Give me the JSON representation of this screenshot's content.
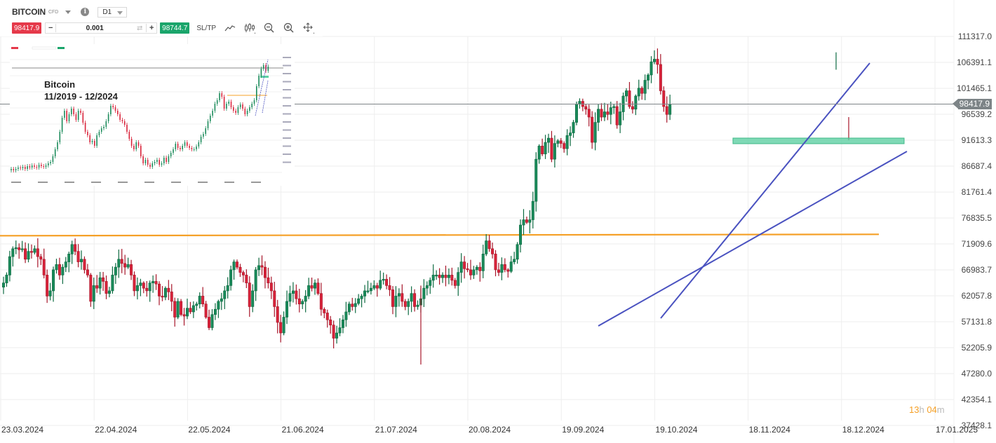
{
  "toolbar": {
    "symbol": "BITCOIN",
    "instrument_type": "CFD",
    "info_icon": "i",
    "timeframe": "D1",
    "sell_price": "98417.9",
    "quantity": "0.001",
    "minus": "−",
    "plus": "+",
    "swap_icon": "⇄",
    "buy_price": "98744.7",
    "sltp_label": "SL/TP",
    "icons": [
      "line-chart-icon",
      "candlestick-icon",
      "zoom-out-icon",
      "zoom-in-icon",
      "move-crosshair-icon"
    ]
  },
  "inset": {
    "title_line1": "Bitcoin",
    "title_line2": "11/2019 - 12/2024"
  },
  "price_axis": {
    "labels": [
      "111317.0",
      "106391.1",
      "101465.1",
      "96539.2",
      "91613.3",
      "86687.4",
      "81761.4",
      "76835.5",
      "71909.6",
      "66983.7",
      "62057.8",
      "57131.8",
      "52205.9",
      "47280.0",
      "42354.1",
      "37428.1"
    ],
    "current_price": "98417.9"
  },
  "time_axis": {
    "labels": [
      "23.03.2024",
      "22.04.2024",
      "22.05.2024",
      "21.06.2024",
      "21.07.2024",
      "20.08.2024",
      "19.09.2024",
      "19.10.2024",
      "18.11.2024",
      "18.12.2024",
      "17.01.2025"
    ]
  },
  "countdown": {
    "hours": "13",
    "h": "h ",
    "minutes": "04",
    "m": "m"
  },
  "colors": {
    "bull": "#1a8a5a",
    "bear": "#d8233a",
    "bull_border": "#0e6b42",
    "bear_border": "#a8162a",
    "trendline": "#4a52c0",
    "resistance": "#f5a027",
    "zone": "#5fd0a4",
    "price_line": "#7d8487",
    "grid": "#eeeeee"
  },
  "chart_data": {
    "type": "candlestick",
    "title": "BITCOIN CFD D1",
    "xlabel": "",
    "ylabel": "",
    "ylim": [
      37428.1,
      111317.0
    ],
    "x_ticks": [
      "23.03.2024",
      "22.04.2024",
      "22.05.2024",
      "21.06.2024",
      "21.07.2024",
      "20.08.2024",
      "19.09.2024",
      "19.10.2024",
      "18.11.2024",
      "18.12.2024",
      "17.01.2025"
    ],
    "current_price": 98417.9,
    "annotations": {
      "resistance_line": {
        "price": 73600,
        "color": "orange"
      },
      "support_zone": {
        "low": 90900,
        "high": 92100,
        "color": "green"
      },
      "trendlines": [
        {
          "from": [
            "~01.10.2024",
            56800
          ],
          "to": [
            "~06.01.2025",
            88700
          ]
        },
        {
          "from": [
            "~08.10.2024",
            57600
          ],
          "to": [
            "~29.12.2024",
            106000
          ]
        }
      ]
    },
    "candles_ohlc_close": [
      64500,
      66000,
      69500,
      71000,
      71200,
      70800,
      71000,
      69000,
      70500,
      70300,
      71000,
      69500,
      69000,
      66000,
      62000,
      63000,
      67000,
      68000,
      66000,
      67500,
      68500,
      70000,
      71800,
      70500,
      68500,
      69000,
      67000,
      66000,
      61000,
      64000,
      63500,
      65500,
      64800,
      62500,
      63000,
      66000,
      67500,
      69000,
      68200,
      67500,
      68000,
      66000,
      63000,
      64000,
      64500,
      63500,
      63000,
      64500,
      64800,
      64300,
      62000,
      61800,
      63500,
      62800,
      61000,
      58000,
      61000,
      58500,
      58200,
      59700,
      59000,
      60200,
      60500,
      62000,
      60500,
      58000,
      56000,
      58500,
      59500,
      61000,
      61500,
      63000,
      64000,
      67000,
      68500,
      67500,
      66500,
      66000,
      64500,
      60000,
      63000,
      67000,
      67800,
      67500,
      65500,
      64500,
      63000,
      60000,
      57000,
      55000,
      58000,
      61000,
      62500,
      63000,
      61500,
      60500,
      61000,
      62000,
      64000,
      63500,
      64500,
      62500,
      59500,
      58800,
      57500,
      56500,
      54000,
      55000,
      56000,
      57500,
      59000,
      60500,
      60000,
      60600,
      61500,
      62000,
      63000,
      63000,
      63500,
      64000,
      63500,
      65000,
      65200,
      64000,
      63200,
      60000,
      62000,
      62500,
      61000,
      60000,
      61000,
      62500,
      60000,
      60300,
      61500,
      63500,
      64000,
      65000,
      66000,
      66000,
      65500,
      66000,
      65500,
      66000,
      65000,
      64000,
      66500,
      68500,
      67200,
      67000,
      66000,
      67000,
      67500,
      66800,
      70000,
      72500,
      71000,
      70000,
      67000,
      66500,
      68000,
      67000,
      66700,
      68500,
      69000,
      71800,
      75500,
      76500,
      76000,
      76500,
      80000,
      88000,
      90500,
      89000,
      91200,
      92000,
      88000,
      91000,
      91500,
      91000,
      90000,
      92500,
      93000,
      95000,
      98500,
      99000,
      98000,
      97500,
      96000,
      91200,
      95000,
      97500,
      96000,
      97000,
      96500,
      97800,
      98000,
      94500,
      97000,
      100000,
      101000,
      98000,
      97500,
      100000,
      101500,
      100500,
      103000,
      104000,
      106500,
      107000,
      106000,
      101000,
      98000,
      96500,
      98400
    ]
  }
}
